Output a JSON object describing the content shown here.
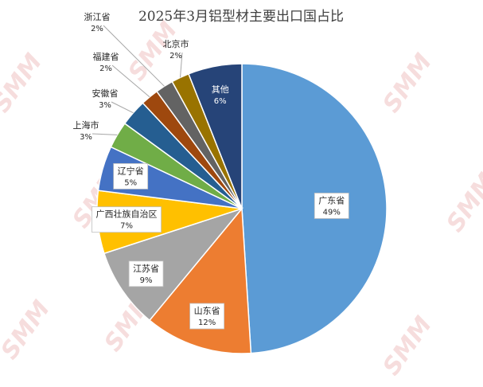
{
  "chart_data": {
    "type": "pie",
    "title": "2025年3月铝型材主要出口国占比",
    "slices": [
      {
        "label": "广东省",
        "value": 49,
        "value_label": "49%",
        "color": "#5b9bd5"
      },
      {
        "label": "山东省",
        "value": 12,
        "value_label": "12%",
        "color": "#ed7d31"
      },
      {
        "label": "江苏省",
        "value": 9,
        "value_label": "9%",
        "color": "#a5a5a5"
      },
      {
        "label": "广西壮族自治区",
        "value": 7,
        "value_label": "7%",
        "color": "#ffc000"
      },
      {
        "label": "辽宁省",
        "value": 5,
        "value_label": "5%",
        "color": "#4472c4"
      },
      {
        "label": "上海市",
        "value": 3,
        "value_label": "3%",
        "color": "#70ad47"
      },
      {
        "label": "安徽省",
        "value": 3,
        "value_label": "3%",
        "color": "#255e91"
      },
      {
        "label": "福建省",
        "value": 2,
        "value_label": "2%",
        "color": "#9e480e"
      },
      {
        "label": "浙江省",
        "value": 2,
        "value_label": "2%",
        "color": "#636363"
      },
      {
        "label": "北京市",
        "value": 2,
        "value_label": "2%",
        "color": "#997300"
      },
      {
        "label": "其他",
        "value": 6,
        "value_label": "6%",
        "color": "#264478"
      }
    ],
    "legend": "none",
    "start_angle_deg": 0,
    "direction": "clockwise"
  },
  "watermark": {
    "text": "SMM"
  }
}
